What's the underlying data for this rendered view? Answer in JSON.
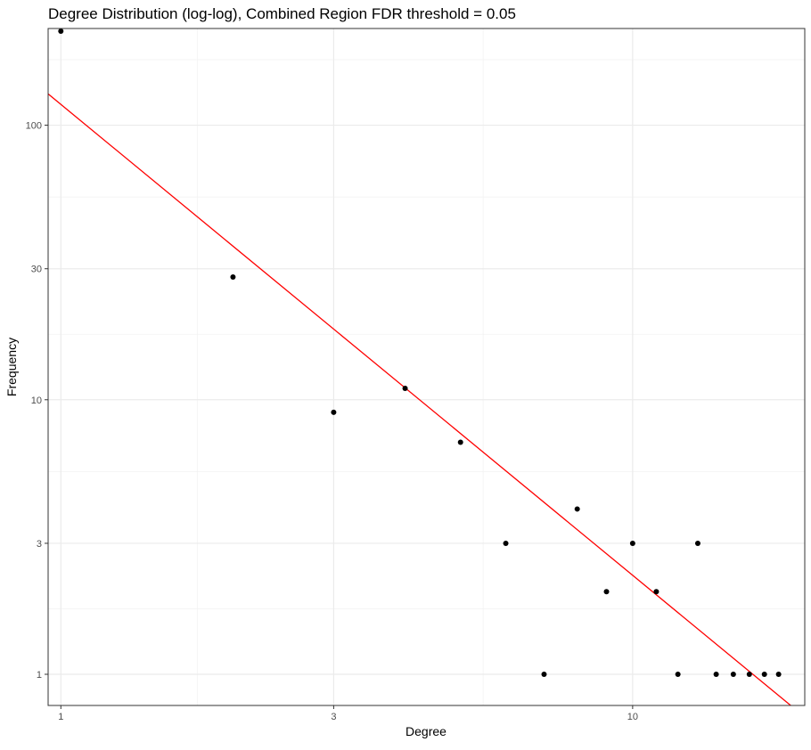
{
  "chart_data": {
    "type": "scatter",
    "title": "Degree Distribution (log-log), Combined Region FDR threshold = 0.05",
    "xlabel": "Degree",
    "ylabel": "Frequency",
    "x_scale": "log10",
    "y_scale": "log10",
    "xlim": [
      0.95,
      20
    ],
    "ylim": [
      0.77,
      225
    ],
    "x_ticks": [
      {
        "value": 1,
        "label": "1"
      },
      {
        "value": 3,
        "label": "3"
      },
      {
        "value": 10,
        "label": "10"
      }
    ],
    "y_ticks": [
      {
        "value": 1,
        "label": "1"
      },
      {
        "value": 3,
        "label": "3"
      },
      {
        "value": 10,
        "label": "10"
      },
      {
        "value": 30,
        "label": "30"
      },
      {
        "value": 100,
        "label": "100"
      }
    ],
    "x_minor_gridlines": [
      1.732,
      5.477
    ],
    "y_minor_gridlines": [
      1.732,
      5.477,
      17.32,
      54.77,
      173.2
    ],
    "grid": true,
    "points": [
      {
        "x": 1,
        "y": 220
      },
      {
        "x": 2,
        "y": 28
      },
      {
        "x": 3,
        "y": 9
      },
      {
        "x": 4,
        "y": 11
      },
      {
        "x": 5,
        "y": 7
      },
      {
        "x": 6,
        "y": 3
      },
      {
        "x": 7,
        "y": 1
      },
      {
        "x": 8,
        "y": 4
      },
      {
        "x": 9,
        "y": 2
      },
      {
        "x": 10,
        "y": 3
      },
      {
        "x": 11,
        "y": 2
      },
      {
        "x": 12,
        "y": 1
      },
      {
        "x": 13,
        "y": 3
      },
      {
        "x": 14,
        "y": 1
      },
      {
        "x": 15,
        "y": 1
      },
      {
        "x": 16,
        "y": 1
      },
      {
        "x": 17,
        "y": 1
      },
      {
        "x": 18,
        "y": 1
      }
    ],
    "fit_line": {
      "color": "#ff0000",
      "from": {
        "x": 0.95,
        "y": 130
      },
      "to": {
        "x": 18.9,
        "y": 0.77
      }
    },
    "point_color": "#000000"
  }
}
